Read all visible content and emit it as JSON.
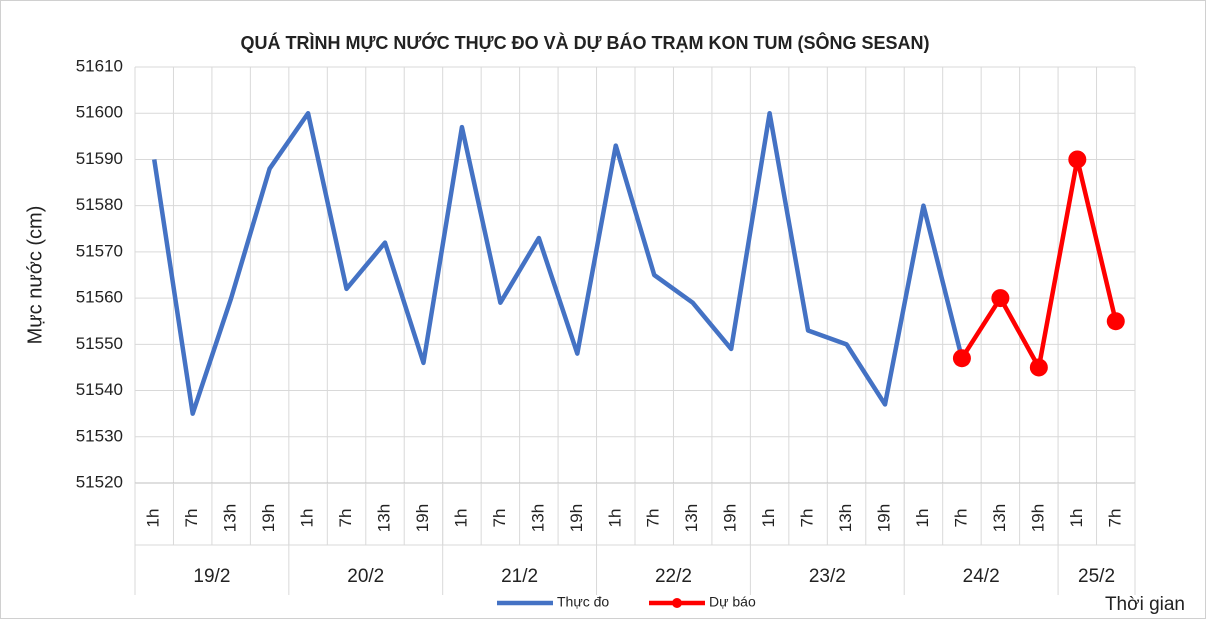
{
  "chart_data": {
    "type": "line",
    "title": "QUÁ TRÌNH MỰC NƯỚC THỰC ĐO VÀ DỰ BÁO TRẠM KON TUM (SÔNG SESAN)",
    "y_label": "Mực nước (cm)",
    "x_label": "Thời gian",
    "category_groups": [
      {
        "name": "19/2",
        "categories": [
          "1h",
          "7h",
          "13h",
          "19h"
        ]
      },
      {
        "name": "20/2",
        "categories": [
          "1h",
          "7h",
          "13h",
          "19h"
        ]
      },
      {
        "name": "21/2",
        "categories": [
          "1h",
          "7h",
          "13h",
          "19h"
        ]
      },
      {
        "name": "22/2",
        "categories": [
          "1h",
          "7h",
          "13h",
          "19h"
        ]
      },
      {
        "name": "23/2",
        "categories": [
          "1h",
          "7h",
          "13h",
          "19h"
        ]
      },
      {
        "name": "24/2",
        "categories": [
          "1h",
          "7h",
          "13h",
          "19h"
        ]
      },
      {
        "name": "25/2",
        "categories": [
          "1h",
          "7h"
        ]
      }
    ],
    "series": [
      {
        "name": "Thực đo",
        "color": "#4472c4",
        "markers": false,
        "values": [
          51590,
          51535,
          51560,
          51588,
          51600,
          51562,
          51572,
          51546,
          51597,
          51559,
          51573,
          51548,
          51593,
          51565,
          51559,
          51549,
          51600,
          51553,
          51550,
          51537,
          51580,
          51547,
          null,
          null,
          null,
          null
        ]
      },
      {
        "name": "Dự báo",
        "color": "#ff0000",
        "markers": true,
        "values": [
          null,
          null,
          null,
          null,
          null,
          null,
          null,
          null,
          null,
          null,
          null,
          null,
          null,
          null,
          null,
          null,
          null,
          null,
          null,
          null,
          null,
          51547,
          51560,
          51545,
          51590,
          51555
        ]
      }
    ],
    "ylim": [
      51520,
      51610
    ],
    "yticks": [
      51520,
      51530,
      51540,
      51550,
      51560,
      51570,
      51580,
      51590,
      51600,
      51610
    ],
    "grid": true
  }
}
